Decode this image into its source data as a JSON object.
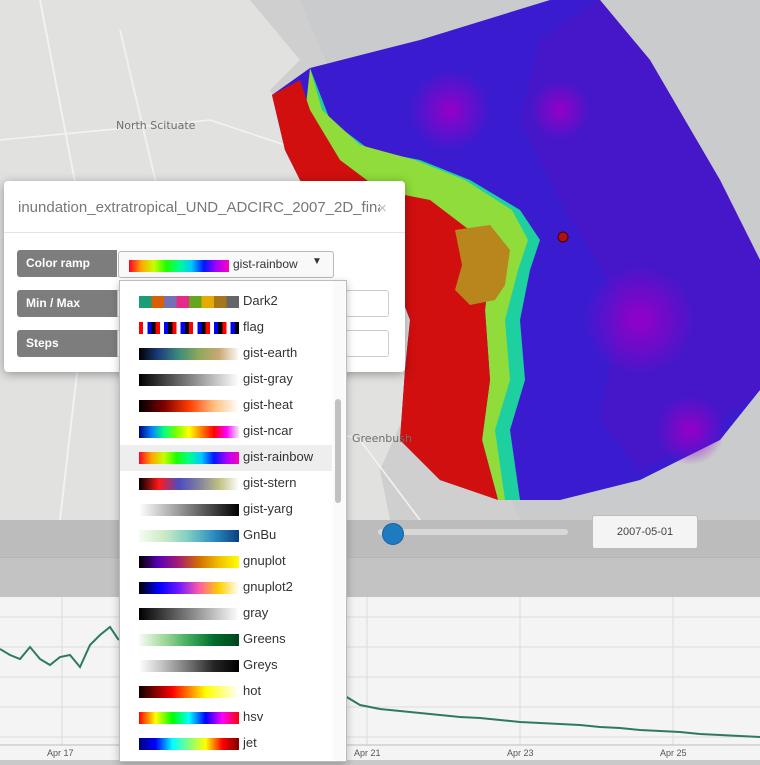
{
  "map": {
    "places": [
      "North Scituate",
      "Greenbush"
    ]
  },
  "dialog": {
    "title": "inundation_extratropical_UND_ADCIRC_2007_2D_fina",
    "close_glyph": "×",
    "rows": [
      {
        "label": "Color ramp"
      },
      {
        "label": "Min / Max"
      },
      {
        "label": "Steps"
      }
    ],
    "selected_ramp": "gist-rainbow",
    "caret_glyph": "▼"
  },
  "ramps": [
    {
      "name": "Dark2",
      "colors": [
        "#1b9e77",
        "#d95f02",
        "#7570b3",
        "#e7298a",
        "#66a61e",
        "#e6ab02",
        "#a6761d",
        "#666666"
      ]
    },
    {
      "name": "flag",
      "colors": [
        "#ff0000",
        "#ffffff",
        "#0000ff",
        "#000000"
      ]
    },
    {
      "name": "gist-earth",
      "colors": [
        "#000000",
        "#1c3f7d",
        "#3f8c79",
        "#8fa85b",
        "#c9a875",
        "#fdfbfb"
      ]
    },
    {
      "name": "gist-gray",
      "colors": [
        "#000000",
        "#ffffff"
      ]
    },
    {
      "name": "gist-heat",
      "colors": [
        "#000000",
        "#7f0000",
        "#ff3c00",
        "#ffbf7f",
        "#ffffff"
      ]
    },
    {
      "name": "gist-ncar",
      "colors": [
        "#000080",
        "#0080ff",
        "#00ff80",
        "#80ff00",
        "#ffff00",
        "#ff8000",
        "#ff0000",
        "#ff00ff",
        "#f0f0f0"
      ]
    },
    {
      "name": "gist-rainbow",
      "colors": [
        "#ff0028",
        "#ffa600",
        "#c7ff00",
        "#1dff00",
        "#00ff8d",
        "#00c9ff",
        "#0017ff",
        "#a600ff",
        "#ff00bf"
      ]
    },
    {
      "name": "gist-stern",
      "colors": [
        "#000000",
        "#ff1a1a",
        "#4c4cbf",
        "#8080a0",
        "#c0c080",
        "#ffffff"
      ]
    },
    {
      "name": "gist-yarg",
      "colors": [
        "#ffffff",
        "#000000"
      ]
    },
    {
      "name": "GnBu",
      "colors": [
        "#f7fcf0",
        "#ccebc5",
        "#7bccc4",
        "#2b8cbe",
        "#084081"
      ]
    },
    {
      "name": "gnuplot",
      "colors": [
        "#000000",
        "#5b00ba",
        "#a81e6f",
        "#d36e00",
        "#f0c000",
        "#ffff00"
      ]
    },
    {
      "name": "gnuplot2",
      "colors": [
        "#000000",
        "#0000ff",
        "#7018ff",
        "#ff5aa5",
        "#ffcf00",
        "#ffffff"
      ]
    },
    {
      "name": "gray",
      "colors": [
        "#000000",
        "#ffffff"
      ]
    },
    {
      "name": "Greens",
      "colors": [
        "#f7fcf5",
        "#a1d99b",
        "#41ab5d",
        "#006d2c",
        "#00441b"
      ]
    },
    {
      "name": "Greys",
      "colors": [
        "#ffffff",
        "#bdbdbd",
        "#737373",
        "#252525",
        "#000000"
      ]
    },
    {
      "name": "hot",
      "colors": [
        "#0b0000",
        "#ff0000",
        "#ffff00",
        "#ffffff"
      ]
    },
    {
      "name": "hsv",
      "colors": [
        "#ff0000",
        "#ffff00",
        "#00ff00",
        "#00ffff",
        "#0000ff",
        "#ff00ff",
        "#ff0000"
      ]
    },
    {
      "name": "jet",
      "colors": [
        "#00007f",
        "#0000ff",
        "#00ffff",
        "#7fff7f",
        "#ffff00",
        "#ff0000",
        "#7f0000"
      ]
    }
  ],
  "timeline": {
    "date": "2007-05-01",
    "ticks": [
      "Apr 17",
      "Apr 21",
      "Apr 23",
      "Apr 25"
    ]
  },
  "colors": {
    "flood_red": "#d10f0f",
    "deep_blue": "#3b1bd0",
    "label_gray": "#7d7d7d",
    "chart_line": "#2d7a60",
    "slider_blue": "#1f7bbf"
  }
}
